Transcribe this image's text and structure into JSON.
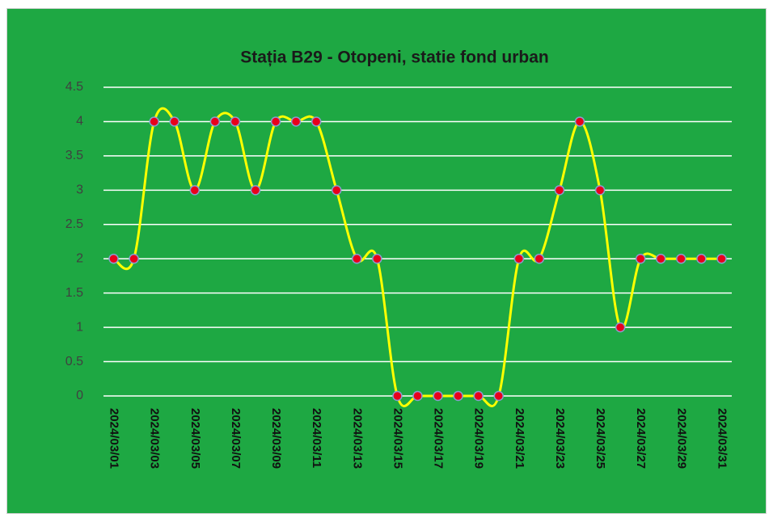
{
  "chart_data": {
    "type": "line",
    "title": "Stația B29 - Otopeni, statie fond urban",
    "categories": [
      "2024/03/01",
      null,
      "2024/03/03",
      null,
      "2024/03/05",
      null,
      "2024/03/07",
      null,
      "2024/03/09",
      null,
      "2024/03/11",
      null,
      "2024/03/13",
      null,
      "2024/03/15",
      null,
      "2024/03/17",
      null,
      "2024/03/19",
      null,
      "2024/03/21",
      null,
      "2024/03/23",
      null,
      "2024/03/25",
      null,
      "2024/03/27",
      null,
      "2024/03/29",
      null,
      "2024/03/31"
    ],
    "values": [
      2,
      2,
      4,
      4,
      3,
      4,
      4,
      3,
      4,
      4,
      4,
      3,
      2,
      2,
      0,
      0,
      0,
      0,
      0,
      0,
      2,
      2,
      3,
      4,
      3,
      1,
      2,
      2,
      2,
      2,
      2
    ],
    "color": "#ffff00",
    "marker_color": "#e8001c",
    "background": "#1ea843",
    "ylim": [
      0,
      4.5
    ],
    "yticks": [
      0,
      0.5,
      1,
      1.5,
      2,
      2.5,
      3,
      3.5,
      4,
      4.5
    ],
    "grid": true,
    "smooth": true
  }
}
